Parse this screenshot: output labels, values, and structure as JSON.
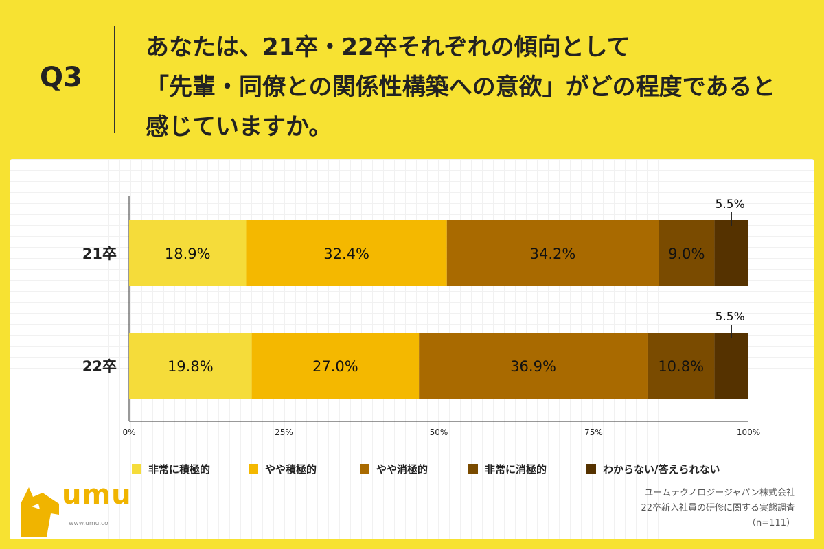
{
  "question": {
    "label": "Q3",
    "lines": [
      "あなたは、21卒・22卒それぞれの傾向として",
      "「先輩・同僚との関係性構築への意欲」がどの程度であると",
      "感じていますか。"
    ]
  },
  "chart_data": {
    "type": "bar",
    "orientation": "horizontal",
    "stacked": true,
    "categories": [
      "21卒",
      "22卒"
    ],
    "series": [
      {
        "name": "非常に積極的",
        "values": [
          18.9,
          19.8
        ],
        "labels": [
          "18.9%",
          "19.8%"
        ],
        "color": "#f5dc3a"
      },
      {
        "name": "やや積極的",
        "values": [
          32.4,
          27.0
        ],
        "labels": [
          "32.4%",
          "27.0%"
        ],
        "color": "#f4b800"
      },
      {
        "name": "やや消極的",
        "values": [
          34.2,
          36.9
        ],
        "labels": [
          "34.2%",
          "36.9%"
        ],
        "color": "#a96a00"
      },
      {
        "name": "非常に消極的",
        "values": [
          9.0,
          10.8
        ],
        "labels": [
          "9.0%",
          "10.8%"
        ],
        "color": "#7a4b00"
      },
      {
        "name": "わからない/答えられない",
        "values": [
          5.5,
          5.5
        ],
        "labels": [
          "5.5%",
          "5.5%"
        ],
        "color": "#553200"
      }
    ],
    "xlim": [
      0,
      100
    ],
    "xticks": [
      "0%",
      "25%",
      "50%",
      "75%",
      "100%"
    ],
    "legend_position": "bottom"
  },
  "logo": {
    "word": "umu",
    "url": "www.umu.co"
  },
  "credit": {
    "lines": [
      "ユームテクノロジージャパン株式会社",
      "22卒新入社員の研修に関する実態調査",
      "（n=111）"
    ]
  }
}
